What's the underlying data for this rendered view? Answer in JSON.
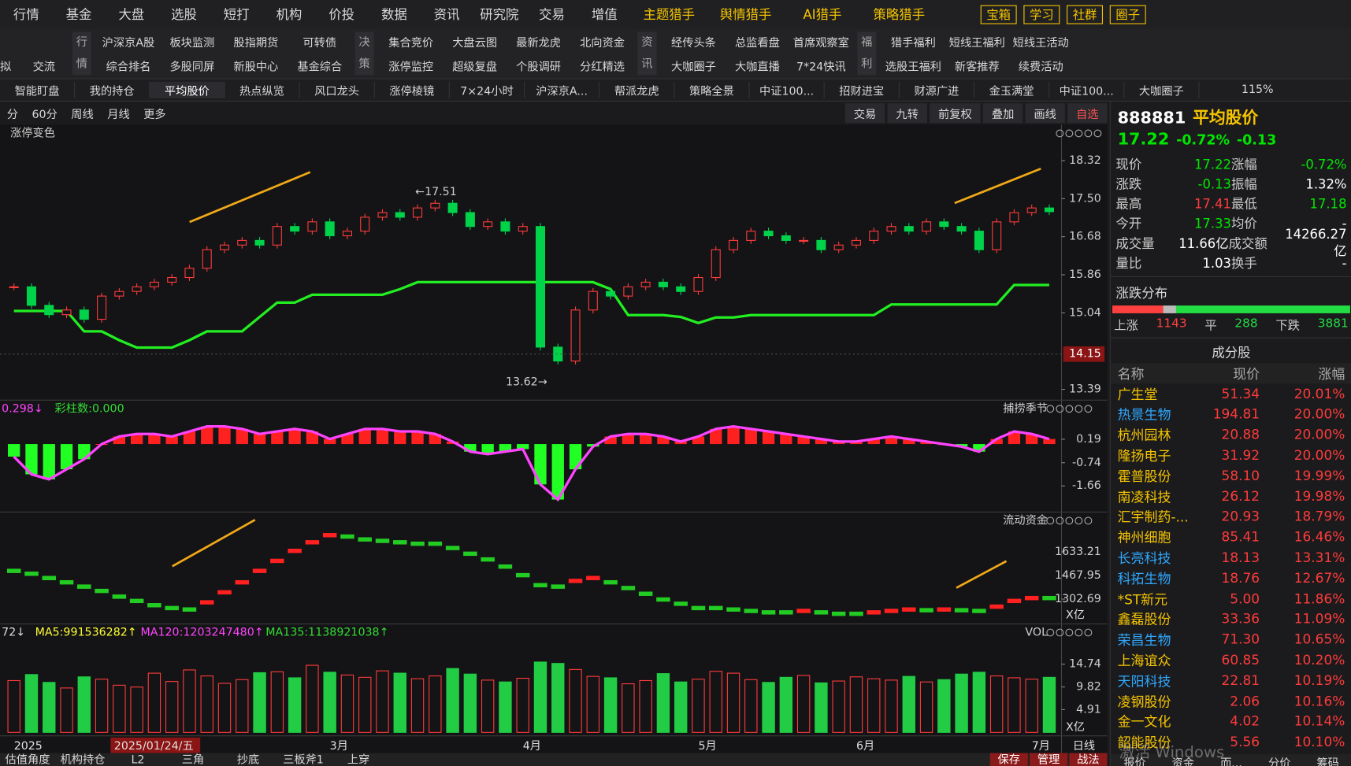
{
  "menu": {
    "items": [
      "行情",
      "基金",
      "大盘",
      "选股",
      "短打",
      "机构",
      "价投",
      "数据",
      "资讯",
      "研究院",
      "交易",
      "增值"
    ],
    "special": [
      "主题猎手",
      "舆情猎手",
      "AI猎手",
      "策略猎手"
    ],
    "boxed": [
      "宝箱",
      "学习",
      "社群",
      "圈子"
    ]
  },
  "toolbar": {
    "quick": [
      "拟",
      "交流"
    ],
    "groups": [
      {
        "label": "行情",
        "rows": [
          [
            "沪深京A股",
            "板块监测",
            "股指期货",
            "可转债"
          ],
          [
            "综合排名",
            "多股同屏",
            "新股中心",
            "基金综合"
          ]
        ]
      },
      {
        "label": "决策",
        "rows": [
          [
            "集合竞价",
            "大盘云图",
            "最新龙虎",
            "北向资金"
          ],
          [
            "涨停监控",
            "超级复盘",
            "个股调研",
            "分红精选"
          ]
        ]
      },
      {
        "label": "资讯",
        "rows": [
          [
            "经传头条",
            "总监看盘",
            "首席观察室"
          ],
          [
            "大咖圈子",
            "大咖直播",
            "7*24快讯"
          ]
        ]
      },
      {
        "label": "福利",
        "rows": [
          [
            "猎手福利",
            "短线王福利",
            "短线王活动"
          ],
          [
            "选股王福利",
            "新客推荐",
            "续费活动"
          ]
        ]
      }
    ]
  },
  "tabs": {
    "items": [
      "智能盯盘",
      "我的持仓",
      "平均股价",
      "热点纵览",
      "风口龙头",
      "涨停棱镜",
      "7×24小时",
      "沪深京A...",
      "帮派龙虎",
      "策略全景",
      "中证100...",
      "招财进宝",
      "财源广进",
      "金玉满堂",
      "中证100...",
      "大咖圈子"
    ],
    "active": 2,
    "zoom": "115%"
  },
  "chart_toolbar": {
    "left": [
      "分",
      "60分",
      "周线",
      "月线",
      "更多"
    ],
    "right": [
      "交易",
      "九转",
      "前复权",
      "叠加",
      "画线",
      "自选"
    ]
  },
  "chart_data": [
    {
      "type": "candlestick",
      "title": "涨停变色",
      "up_color": "#ff3b3b",
      "down_color": "#00d24a",
      "values": [
        15.6,
        15.2,
        15.0,
        15.1,
        14.9,
        15.4,
        15.5,
        15.6,
        15.7,
        15.8,
        16.0,
        16.4,
        16.5,
        16.6,
        16.5,
        16.9,
        16.8,
        17.0,
        16.7,
        16.8,
        17.1,
        17.2,
        17.1,
        17.3,
        17.4,
        17.2,
        16.9,
        17.0,
        16.8,
        16.9,
        14.3,
        14.0,
        15.1,
        15.5,
        15.4,
        15.6,
        15.7,
        15.6,
        15.5,
        15.8,
        16.4,
        16.6,
        16.8,
        16.7,
        16.6,
        16.6,
        16.4,
        16.5,
        16.6,
        16.8,
        16.9,
        16.8,
        17.0,
        16.9,
        16.8,
        16.4,
        17.0,
        17.2,
        17.3,
        17.22
      ],
      "series": [
        {
          "color": "#22ee22",
          "values": [
            15.08,
            15.08,
            15.08,
            15.08,
            14.64,
            14.64,
            14.45,
            14.29,
            14.29,
            14.29,
            14.45,
            14.64,
            14.64,
            14.64,
            14.95,
            15.26,
            15.26,
            15.43,
            15.43,
            15.43,
            15.43,
            15.43,
            15.55,
            15.7,
            15.7,
            15.7,
            15.7,
            15.7,
            15.7,
            15.7,
            15.7,
            15.7,
            15.7,
            15.7,
            15.55,
            14.99,
            14.99,
            14.99,
            14.95,
            14.82,
            14.94,
            14.94,
            14.99,
            14.99,
            14.99,
            14.99,
            14.99,
            14.99,
            14.99,
            14.99,
            15.22,
            15.22,
            15.22,
            15.22,
            15.22,
            15.22,
            15.22,
            15.64,
            15.64,
            15.64
          ]
        }
      ],
      "ylim": [
        13.23,
        18.87
      ],
      "yticks": [
        18.32,
        {
          "value": 17.5,
          "label": "17.50"
        },
        16.68,
        15.86,
        15.04,
        13.39
      ],
      "crosshair_price": 14.15,
      "annotations": [
        "←17.51",
        "13.62→"
      ]
    },
    {
      "type": "bar",
      "title": "捕捞季节",
      "legend": [
        {
          "text": "0.298↓",
          "color": "#ff44ff"
        },
        {
          "text": "彩柱数:0.000",
          "color": "#33dd33"
        }
      ],
      "line_color": "#ff44ff",
      "up_color": "#ff2020",
      "down_color": "#22ff22",
      "values": [
        -0.5,
        -1.2,
        -1.4,
        -1.0,
        -0.6,
        0.0,
        0.3,
        0.4,
        0.4,
        0.3,
        0.5,
        0.7,
        0.7,
        0.6,
        0.4,
        0.5,
        0.6,
        0.5,
        0.2,
        0.4,
        0.6,
        0.6,
        0.5,
        0.5,
        0.4,
        0.1,
        -0.3,
        -0.4,
        -0.3,
        -0.2,
        -1.6,
        -2.2,
        -1.0,
        -0.1,
        0.3,
        0.4,
        0.4,
        0.3,
        0.1,
        0.3,
        0.6,
        0.7,
        0.6,
        0.5,
        0.4,
        0.3,
        0.2,
        0.1,
        0.1,
        0.2,
        0.3,
        0.2,
        0.1,
        0.0,
        -0.1,
        -0.3,
        0.2,
        0.5,
        0.4,
        0.2
      ],
      "ylim": [
        -2.56,
        1.33
      ],
      "yticks": [
        0.19,
        -0.74,
        -1.66
      ]
    },
    {
      "type": "step",
      "title": "流动资金",
      "unit": "X亿",
      "up_color": "#ff2020",
      "down_color": "#22cc22",
      "values": [
        1500,
        1480,
        1450,
        1420,
        1390,
        1360,
        1320,
        1290,
        1260,
        1240,
        1230,
        1280,
        1350,
        1420,
        1500,
        1570,
        1640,
        1700,
        1750,
        1740,
        1720,
        1710,
        1700,
        1690,
        1690,
        1660,
        1620,
        1580,
        1530,
        1470,
        1400,
        1390,
        1430,
        1450,
        1420,
        1380,
        1340,
        1300,
        1270,
        1240,
        1240,
        1230,
        1220,
        1210,
        1210,
        1220,
        1210,
        1200,
        1200,
        1210,
        1220,
        1230,
        1225,
        1230,
        1225,
        1220,
        1250,
        1290,
        1310,
        1310
      ],
      "ylim": [
        1153,
        1839
      ],
      "yticks": [
        1633.21,
        1467.95,
        1302.69
      ]
    },
    {
      "type": "volume",
      "title": "VOL",
      "unit": "X亿",
      "legend": [
        {
          "text": "72↓",
          "color": "#dddddd"
        },
        {
          "text": "MA5:991536282↑",
          "color": "#ffff33"
        },
        {
          "text": "MA120:1203247480↑",
          "color": "#ff44ff"
        },
        {
          "text": "MA135:1138921038↑",
          "color": "#33dd33"
        }
      ],
      "values": [
        11.2,
        12.5,
        10.8,
        9.6,
        12.0,
        11.5,
        10.2,
        9.8,
        12.8,
        11.0,
        13.5,
        12.2,
        10.6,
        11.4,
        12.9,
        13.1,
        11.8,
        14.5,
        13.0,
        12.4,
        11.9,
        13.3,
        12.8,
        11.6,
        12.2,
        13.8,
        12.6,
        11.3,
        10.9,
        11.7,
        15.2,
        14.9,
        13.6,
        12.1,
        11.8,
        10.5,
        11.2,
        12.7,
        10.9,
        11.5,
        13.2,
        12.8,
        11.4,
        10.8,
        11.9,
        12.3,
        10.7,
        11.1,
        12.0,
        11.6,
        11.3,
        12.1,
        10.9,
        11.4,
        12.6,
        13.0,
        12.2,
        11.8,
        11.5,
        11.9
      ],
      "ylim": [
        0,
        21.2
      ],
      "yticks": [
        14.74,
        9.82,
        4.91
      ],
      "categories": [
        "2025",
        null,
        null,
        null,
        null,
        null,
        "2025/01/24/五",
        null,
        null,
        null,
        null,
        null,
        null,
        null,
        null,
        null,
        null,
        null,
        "3月",
        null,
        null,
        null,
        null,
        null,
        null,
        null,
        null,
        null,
        null,
        "4月",
        null,
        null,
        null,
        null,
        null,
        null,
        null,
        null,
        null,
        "5月",
        null,
        null,
        null,
        null,
        null,
        null,
        null,
        null,
        "6月",
        null,
        null,
        null,
        null,
        null,
        null,
        null,
        null,
        null,
        "7月",
        null
      ],
      "highlight_category": 6,
      "period": "日线"
    }
  ],
  "side": {
    "code": "888881",
    "name": "平均股价",
    "price": "17.22",
    "change_pct": "-0.72%",
    "change": "-0.13",
    "quote_rows": [
      [
        {
          "text": "现价"
        },
        {
          "text": "17.22",
          "color": "#00e600"
        },
        {
          "text": "涨幅"
        },
        {
          "text": "-0.72%",
          "color": "#00e600"
        }
      ],
      [
        {
          "text": "涨跌"
        },
        {
          "text": "-0.13",
          "color": "#00e600"
        },
        {
          "text": "振幅"
        },
        {
          "text": "1.32%",
          "color": "#ffffff"
        }
      ],
      [
        {
          "text": "最高"
        },
        {
          "text": "17.41",
          "color": "#ff3b3b"
        },
        {
          "text": "最低"
        },
        {
          "text": "17.18",
          "color": "#00e600"
        }
      ],
      [
        {
          "text": "今开"
        },
        {
          "text": "17.33",
          "color": "#00e600"
        },
        {
          "text": "均价"
        },
        {
          "text": "-",
          "color": "#ffffff"
        }
      ],
      [
        {
          "text": "成交量"
        },
        {
          "text": "11.66亿",
          "color": "#ffffff"
        },
        {
          "text": "成交额"
        },
        {
          "text": "14266.27亿",
          "color": "#ffffff"
        }
      ],
      [
        {
          "text": "量比"
        },
        {
          "text": "1.03",
          "color": "#ffffff"
        },
        {
          "text": "换手"
        },
        {
          "text": "-",
          "color": "#ffffff"
        }
      ]
    ],
    "breadth": {
      "title": "涨跌分布",
      "up_label": "上涨",
      "up": 1143,
      "flat_label": "平",
      "flat": 288,
      "down_label": "下跌",
      "down": 3881
    },
    "constituents": {
      "title": "成分股",
      "header": [
        "名称",
        "现价",
        "涨幅"
      ],
      "rows": [
        {
          "name": "广生堂",
          "price": "51.34",
          "change": "20.01%",
          "color": "#f5c400"
        },
        {
          "name": "热景生物",
          "price": "194.81",
          "change": "20.00%",
          "color": "#2fa8ff"
        },
        {
          "name": "杭州园林",
          "price": "20.88",
          "change": "20.00%",
          "color": "#f5c400"
        },
        {
          "name": "隆扬电子",
          "price": "31.92",
          "change": "20.00%",
          "color": "#f5c400"
        },
        {
          "name": "霍普股份",
          "price": "58.10",
          "change": "19.99%",
          "color": "#f5c400"
        },
        {
          "name": "南凌科技",
          "price": "26.12",
          "change": "19.98%",
          "color": "#f5c400"
        },
        {
          "name": "汇宇制药-...",
          "price": "20.93",
          "change": "18.79%",
          "color": "#f5c400"
        },
        {
          "name": "神州细胞",
          "price": "85.41",
          "change": "16.46%",
          "color": "#f5c400"
        },
        {
          "name": "长亮科技",
          "price": "18.13",
          "change": "13.31%",
          "color": "#2fa8ff"
        },
        {
          "name": "科拓生物",
          "price": "18.76",
          "change": "12.67%",
          "color": "#2fa8ff"
        },
        {
          "name": "*ST新元",
          "price": "5.00",
          "change": "11.86%",
          "color": "#f5c400"
        },
        {
          "name": "鑫磊股份",
          "price": "33.36",
          "change": "11.09%",
          "color": "#f5c400"
        },
        {
          "name": "荣昌生物",
          "price": "71.30",
          "change": "10.65%",
          "color": "#2fa8ff"
        },
        {
          "name": "上海谊众",
          "price": "60.85",
          "change": "10.20%",
          "color": "#f5c400"
        },
        {
          "name": "天阳科技",
          "price": "22.81",
          "change": "10.19%",
          "color": "#2fa8ff"
        },
        {
          "name": "凌钢股份",
          "price": "2.06",
          "change": "10.16%",
          "color": "#f5c400"
        },
        {
          "name": "金一文化",
          "price": "4.02",
          "change": "10.14%",
          "color": "#f5c400"
        },
        {
          "name": "韶能股份",
          "price": "5.56",
          "change": "10.10%",
          "color": "#f5c400"
        }
      ]
    },
    "tabs": [
      "报价",
      "资金",
      "而...",
      "分价",
      "筹码"
    ],
    "watermark": "激活 Windows"
  },
  "bottom_tabs": {
    "left": [
      "估值角度",
      "机构持仓",
      "L2",
      "三角",
      "抄底",
      "三板斧1",
      "上穿"
    ],
    "right": [
      "保存",
      "管理",
      "战法"
    ]
  }
}
